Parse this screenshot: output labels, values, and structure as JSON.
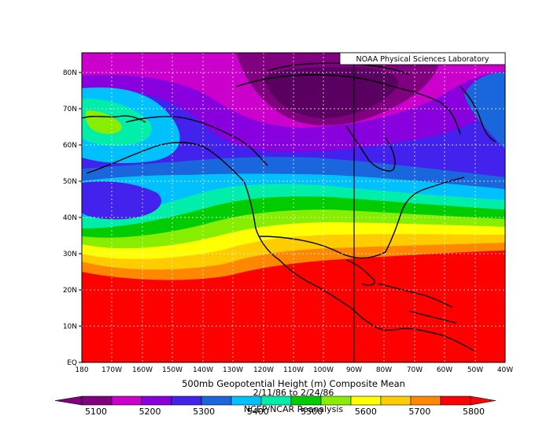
{
  "map": {
    "credit": "NOAA Physical Sciences Laboratory",
    "title": "500mb Geopotential Height (m) Composite Mean",
    "date_range": "2/11/86 to 2/24/86",
    "source": "NCEP/NCAR Reanalysis",
    "lat_labels": [
      "EQ",
      "10N",
      "20N",
      "30N",
      "40N",
      "50N",
      "60N",
      "70N",
      "80N"
    ],
    "lon_labels": [
      "180",
      "170W",
      "160W",
      "150W",
      "140W",
      "130W",
      "120W",
      "110W",
      "100W",
      "90W",
      "80W",
      "70W",
      "60W",
      "50W",
      "40W"
    ],
    "legend": {
      "tick_labels": [
        "5100",
        "5200",
        "5300",
        "5400",
        "5500",
        "5600",
        "5700",
        "5800"
      ],
      "colors": [
        "#800080",
        "#cc00cc",
        "#8800dd",
        "#4422ee",
        "#1a66dd",
        "#00c0ff",
        "#00eeaa",
        "#00cc00",
        "#88ee00",
        "#ffff00",
        "#ffcc00",
        "#ff8800",
        "#ff0000"
      ]
    }
  }
}
